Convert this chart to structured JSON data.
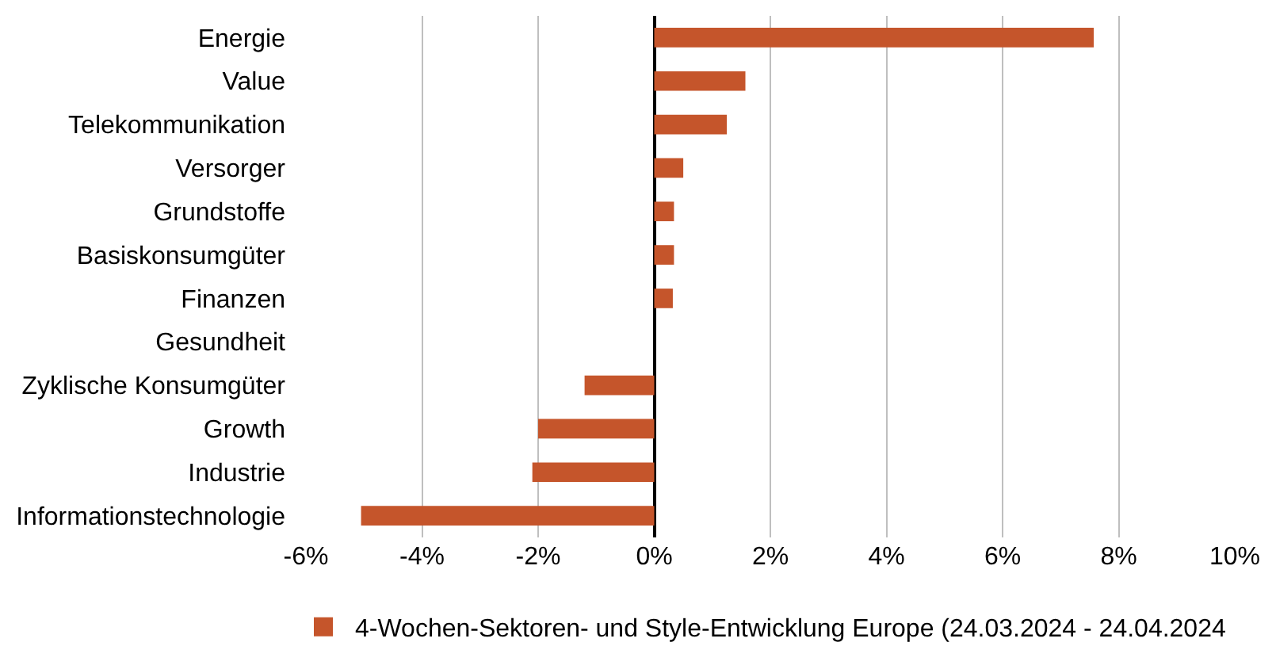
{
  "chart_data": {
    "type": "bar",
    "orientation": "horizontal",
    "categories": [
      "Energie",
      "Value",
      "Telekommunikation",
      "Versorger",
      "Grundstoffe",
      "Basiskonsumgüter",
      "Finanzen",
      "Gesundheit",
      "Zyklische Konsumgüter",
      "Growth",
      "Industrie",
      "Informationstechnologie"
    ],
    "series": [
      {
        "name": "4-Wochen-Sektoren- und Style-Entwicklung Europe (24.03.2024 - 24.04.2024",
        "color": "#c5552b",
        "values": [
          7.57,
          1.57,
          1.25,
          0.5,
          0.34,
          0.34,
          0.32,
          0,
          -1.2,
          -2.0,
          -2.1,
          -5.05
        ]
      }
    ],
    "xlim": [
      -6,
      10
    ],
    "xticks": [
      {
        "value": -6,
        "label": "-6%"
      },
      {
        "value": -4,
        "label": "-4%"
      },
      {
        "value": -2,
        "label": "-2%"
      },
      {
        "value": 0,
        "label": "0%"
      },
      {
        "value": 2,
        "label": "2%"
      },
      {
        "value": 4,
        "label": "4%"
      },
      {
        "value": 6,
        "label": "6%"
      },
      {
        "value": 8,
        "label": "8%"
      },
      {
        "value": 10,
        "label": "10%"
      }
    ],
    "grid": "x",
    "legend": "bottom"
  }
}
